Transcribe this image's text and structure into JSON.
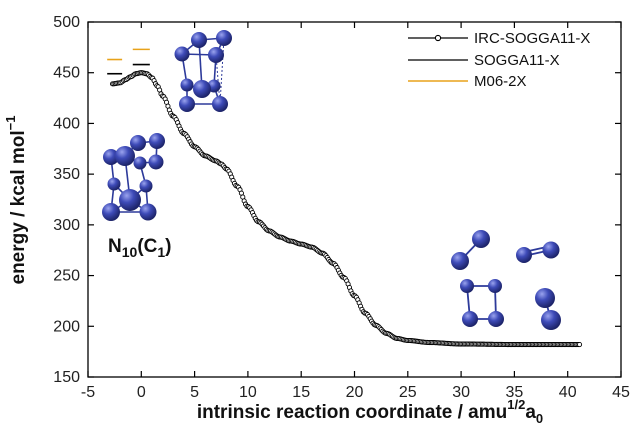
{
  "chart_data": {
    "type": "line",
    "xlabel": "intrinsic reaction coordinate / amu",
    "xlabel_sup": "1/2",
    "xlabel_tail": "a",
    "xlabel_sub": "0",
    "ylabel": "energy / kcal mol",
    "ylabel_sup": "−1",
    "xlim": [
      -5,
      45
    ],
    "ylim": [
      150,
      500
    ],
    "xticks": [
      -5,
      0,
      5,
      10,
      15,
      20,
      25,
      30,
      35,
      40,
      45
    ],
    "yticks": [
      150,
      200,
      250,
      300,
      350,
      400,
      450,
      500
    ],
    "grid": false,
    "legend_position": "top-right",
    "series": [
      {
        "name": "IRC-SOGGA11-X",
        "color": "#000000",
        "marker": "open-circle",
        "curve": [
          [
            -2.7,
            439
          ],
          [
            -2.0,
            440
          ],
          [
            -1.5,
            443
          ],
          [
            -1.0,
            446
          ],
          [
            -0.5,
            449
          ],
          [
            0.0,
            450
          ],
          [
            0.5,
            449
          ],
          [
            1.0,
            445
          ],
          [
            1.5,
            437
          ],
          [
            2.0,
            427
          ],
          [
            3.0,
            407
          ],
          [
            4.0,
            390
          ],
          [
            5.0,
            377
          ],
          [
            6.0,
            368
          ],
          [
            7.0,
            363
          ],
          [
            7.5,
            360
          ],
          [
            8.0,
            355
          ],
          [
            9.0,
            338
          ],
          [
            10.0,
            318
          ],
          [
            11.0,
            303
          ],
          [
            12.0,
            294
          ],
          [
            13.0,
            288
          ],
          [
            14.0,
            284
          ],
          [
            15.0,
            281
          ],
          [
            16.0,
            278
          ],
          [
            17.0,
            272
          ],
          [
            18.0,
            262
          ],
          [
            19.0,
            248
          ],
          [
            20.0,
            230
          ],
          [
            21.0,
            213
          ],
          [
            22.0,
            201
          ],
          [
            23.0,
            193
          ],
          [
            24.0,
            188
          ],
          [
            25.0,
            186
          ],
          [
            27.0,
            184
          ],
          [
            30.0,
            182.5
          ],
          [
            35.0,
            182
          ],
          [
            41.2,
            182
          ]
        ]
      },
      {
        "name": "SOGGA11-X",
        "color": "#000000",
        "marker": "none",
        "levels": [
          {
            "x": [
              -3.2,
              -1.8
            ],
            "y": 449
          },
          {
            "x": [
              -0.8,
              0.8
            ],
            "y": 458
          }
        ]
      },
      {
        "name": "M06-2X",
        "color": "#e8a21a",
        "marker": "none",
        "levels": [
          {
            "x": [
              -3.2,
              -1.8
            ],
            "y": 463
          },
          {
            "x": [
              -0.8,
              0.8
            ],
            "y": 473
          }
        ]
      }
    ],
    "annotations": [
      {
        "base": "N",
        "sub": "10",
        "mid": "(C",
        "sub2": "1",
        "tail": ")"
      }
    ]
  },
  "colors": {
    "atom": "#2f3a9e",
    "atom_highlight": "#8f98e6",
    "bond": "#2d3a9a"
  }
}
